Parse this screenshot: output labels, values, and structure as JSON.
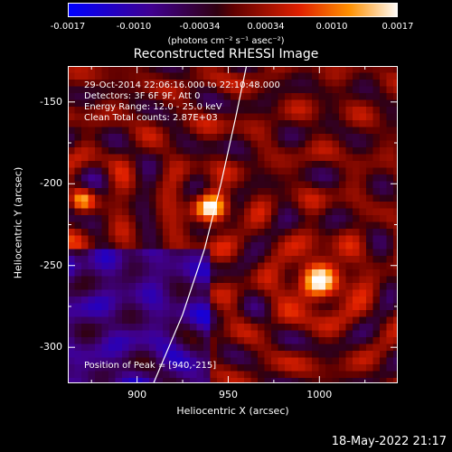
{
  "colorbar": {
    "ticks": [
      "-0.0017",
      "-0.0010",
      "-0.00034",
      "0.00034",
      "0.0010",
      "0.0017"
    ],
    "units": "(photons cm⁻² s⁻¹ asec⁻²)"
  },
  "footer": {
    "datetime": "18-May-2022 21:17"
  },
  "chart_data": {
    "type": "heatmap",
    "title": "Reconstructed RHESSI Image",
    "xlabel": "Heliocentric X (arcsec)",
    "ylabel": "Heliocentric Y (arcsec)",
    "xlim": [
      862,
      1043
    ],
    "ylim": [
      -322,
      -128
    ],
    "xticks": [
      900,
      950,
      1000
    ],
    "yticks": [
      -150,
      -200,
      -250,
      -300
    ],
    "clim": [
      -0.0017,
      0.0017
    ],
    "colormap": "blue-purple-red-orange-yellow-white",
    "info_lines": [
      "29-Oct-2014 22:06:16.000  to  22:10:48.000",
      "Detectors: 3F 6F 9F, Att 0",
      "Energy Range: 12.0 - 25.0 keV",
      "Clean    Total counts: 2.87E+03"
    ],
    "peak_label": "Position of Peak = [940,-215]",
    "peak": [
      940,
      -215
    ],
    "sources": [
      {
        "x": 940,
        "y": -215,
        "amp": 0.0017,
        "sigma": 7
      },
      {
        "x": 1000,
        "y": -260,
        "amp": 0.0014,
        "sigma": 11
      },
      {
        "x": 870,
        "y": -210,
        "amp": 0.0011,
        "sigma": 5
      }
    ],
    "limb_curve": [
      [
        909,
        -322
      ],
      [
        925,
        -280
      ],
      [
        937,
        -240
      ],
      [
        946,
        -200
      ],
      [
        954,
        -160
      ],
      [
        960,
        -128
      ]
    ]
  }
}
